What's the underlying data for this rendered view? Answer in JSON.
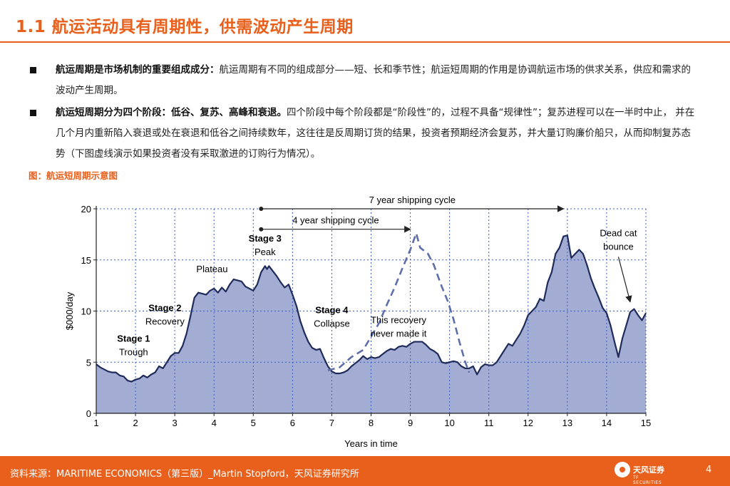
{
  "header": {
    "title": "1.1 航运活动具有周期性，供需波动产生周期"
  },
  "bullets": [
    {
      "bold": "航运周期是市场机制的重要组成成分：",
      "text": "航运周期有不同的组成部分——短、长和季节性；航运短周期的作用是协调航运市场的供求关系，供应和需求的波动产生周期。"
    },
    {
      "bold": "航运短周期分为四个阶段：低谷、复苏、高峰和衰退。",
      "text": "四个阶段中每个阶段都是“阶段性”的，过程不具备“规律性”；复苏进程可以在一半时中止， 并在几个月内重新陷入衰退或处在衰退和低谷之间持续数年，这往往是反周期订货的结果，投资者预期经济会复苏，并大量订购廉价船只，从而抑制复苏态势（下图虚线演示如果投资者没有采取激进的订购行为情况）。"
    }
  ],
  "figure": {
    "caption": "图：航运短周期示意图"
  },
  "chart_data": {
    "type": "area",
    "xlabel": "Years in time",
    "ylabel": "$000/day",
    "xlim": [
      1,
      15
    ],
    "ylim": [
      0,
      20
    ],
    "xticks": [
      1,
      2,
      3,
      4,
      5,
      6,
      7,
      8,
      9,
      10,
      11,
      12,
      13,
      14,
      15
    ],
    "yticks": [
      0,
      5,
      10,
      15,
      20
    ],
    "grid": true,
    "fill_color": "#a3add3",
    "line_color": "#1f2b5a",
    "series": [
      {
        "values": [
          [
            1.0,
            4.8
          ],
          [
            1.1,
            4.5
          ],
          [
            1.2,
            4.3
          ],
          [
            1.3,
            4.1
          ],
          [
            1.4,
            4.0
          ],
          [
            1.5,
            4.0
          ],
          [
            1.6,
            3.7
          ],
          [
            1.7,
            3.6
          ],
          [
            1.8,
            3.2
          ],
          [
            1.9,
            3.1
          ],
          [
            2.0,
            3.3
          ],
          [
            2.1,
            3.4
          ],
          [
            2.2,
            3.7
          ],
          [
            2.3,
            3.5
          ],
          [
            2.4,
            3.8
          ],
          [
            2.5,
            4.0
          ],
          [
            2.6,
            4.6
          ],
          [
            2.7,
            4.4
          ],
          [
            2.8,
            5.0
          ],
          [
            2.9,
            5.6
          ],
          [
            3.0,
            5.9
          ],
          [
            3.1,
            5.9
          ],
          [
            3.2,
            6.6
          ],
          [
            3.3,
            7.8
          ],
          [
            3.4,
            9.5
          ],
          [
            3.5,
            11.3
          ],
          [
            3.6,
            11.8
          ],
          [
            3.7,
            11.7
          ],
          [
            3.8,
            11.6
          ],
          [
            3.9,
            12.0
          ],
          [
            4.0,
            12.2
          ],
          [
            4.1,
            11.8
          ],
          [
            4.2,
            12.3
          ],
          [
            4.3,
            11.9
          ],
          [
            4.4,
            12.6
          ],
          [
            4.5,
            13.1
          ],
          [
            4.6,
            13.0
          ],
          [
            4.7,
            12.9
          ],
          [
            4.8,
            12.4
          ],
          [
            4.9,
            12.2
          ],
          [
            5.0,
            12.0
          ],
          [
            5.1,
            12.6
          ],
          [
            5.2,
            13.8
          ],
          [
            5.3,
            14.4
          ],
          [
            5.35,
            14.1
          ],
          [
            5.4,
            14.4
          ],
          [
            5.5,
            13.9
          ],
          [
            5.6,
            13.4
          ],
          [
            5.7,
            12.8
          ],
          [
            5.8,
            12.3
          ],
          [
            5.9,
            12.6
          ],
          [
            6.0,
            11.6
          ],
          [
            6.1,
            10.5
          ],
          [
            6.2,
            9.0
          ],
          [
            6.3,
            7.9
          ],
          [
            6.4,
            7.0
          ],
          [
            6.5,
            6.4
          ],
          [
            6.6,
            6.2
          ],
          [
            6.7,
            6.3
          ],
          [
            6.8,
            5.4
          ],
          [
            6.9,
            4.6
          ],
          [
            7.0,
            4.1
          ],
          [
            7.1,
            3.9
          ],
          [
            7.2,
            3.9
          ],
          [
            7.3,
            4.0
          ],
          [
            7.4,
            4.2
          ],
          [
            7.5,
            4.6
          ],
          [
            7.6,
            4.9
          ],
          [
            7.7,
            5.2
          ],
          [
            7.8,
            5.6
          ],
          [
            7.9,
            5.3
          ],
          [
            8.0,
            5.5
          ],
          [
            8.1,
            5.4
          ],
          [
            8.2,
            5.5
          ],
          [
            8.3,
            5.8
          ],
          [
            8.4,
            6.1
          ],
          [
            8.5,
            6.3
          ],
          [
            8.6,
            6.2
          ],
          [
            8.7,
            6.5
          ],
          [
            8.8,
            6.6
          ],
          [
            8.9,
            6.5
          ],
          [
            9.0,
            6.8
          ],
          [
            9.1,
            7.0
          ],
          [
            9.2,
            7.0
          ],
          [
            9.3,
            7.0
          ],
          [
            9.4,
            6.7
          ],
          [
            9.5,
            6.3
          ],
          [
            9.6,
            6.1
          ],
          [
            9.7,
            5.8
          ],
          [
            9.8,
            5.0
          ],
          [
            9.9,
            4.9
          ],
          [
            10.0,
            5.0
          ],
          [
            10.1,
            5.1
          ],
          [
            10.2,
            5.0
          ],
          [
            10.3,
            4.6
          ],
          [
            10.4,
            4.4
          ],
          [
            10.5,
            4.4
          ],
          [
            10.6,
            4.6
          ],
          [
            10.7,
            3.8
          ],
          [
            10.8,
            4.5
          ],
          [
            10.9,
            4.8
          ],
          [
            11.0,
            4.7
          ],
          [
            11.1,
            4.7
          ],
          [
            11.2,
            5.0
          ],
          [
            11.3,
            5.6
          ],
          [
            11.4,
            6.2
          ],
          [
            11.5,
            6.8
          ],
          [
            11.6,
            6.6
          ],
          [
            11.7,
            7.2
          ],
          [
            11.8,
            7.8
          ],
          [
            11.9,
            8.6
          ],
          [
            12.0,
            9.6
          ],
          [
            12.1,
            10.0
          ],
          [
            12.2,
            10.4
          ],
          [
            12.3,
            11.2
          ],
          [
            12.4,
            11.0
          ],
          [
            12.5,
            12.8
          ],
          [
            12.6,
            13.8
          ],
          [
            12.7,
            15.6
          ],
          [
            12.8,
            16.2
          ],
          [
            12.9,
            17.3
          ],
          [
            13.0,
            17.4
          ],
          [
            13.1,
            15.2
          ],
          [
            13.2,
            15.6
          ],
          [
            13.3,
            16.0
          ],
          [
            13.4,
            15.6
          ],
          [
            13.5,
            14.5
          ],
          [
            13.6,
            13.2
          ],
          [
            13.7,
            12.2
          ],
          [
            13.8,
            11.3
          ],
          [
            13.9,
            10.3
          ],
          [
            14.0,
            9.8
          ],
          [
            14.1,
            8.6
          ],
          [
            14.2,
            7.0
          ],
          [
            14.3,
            5.5
          ],
          [
            14.4,
            7.3
          ],
          [
            14.5,
            8.6
          ],
          [
            14.6,
            9.9
          ],
          [
            14.7,
            10.2
          ],
          [
            14.8,
            9.6
          ],
          [
            14.9,
            9.1
          ],
          [
            15.0,
            9.8
          ]
        ]
      },
      {
        "style": "dashed",
        "values": [
          [
            6.9,
            4.2
          ],
          [
            7.2,
            4.5
          ],
          [
            7.5,
            5.5
          ],
          [
            7.8,
            6.2
          ],
          [
            8.0,
            7.5
          ],
          [
            8.2,
            8.8
          ],
          [
            8.4,
            10.6
          ],
          [
            8.6,
            12.3
          ],
          [
            8.8,
            14.2
          ],
          [
            9.0,
            16.0
          ],
          [
            9.15,
            17.6
          ],
          [
            9.25,
            16.2
          ],
          [
            9.45,
            15.6
          ],
          [
            9.6,
            14.5
          ],
          [
            9.8,
            12.4
          ],
          [
            9.95,
            11.0
          ],
          [
            10.1,
            9.2
          ],
          [
            10.25,
            7.0
          ],
          [
            10.4,
            5.0
          ],
          [
            10.5,
            4.0
          ]
        ]
      }
    ],
    "annotations": [
      {
        "text": "7 year shipping cycle",
        "from": 5.2,
        "to": 12.9,
        "y": 20
      },
      {
        "text": "4 year shipping cycle",
        "from": 5.2,
        "to": 9.0,
        "y": 18
      },
      {
        "text": "Stage 1",
        "sub": "Trough",
        "x": 1.95,
        "y": 7.0
      },
      {
        "text": "Stage 2",
        "sub": "Recovery",
        "x": 2.75,
        "y": 10.0
      },
      {
        "text": "Plateau",
        "x": 3.95,
        "y": 13.8
      },
      {
        "text": "Stage 3",
        "sub": "Peak",
        "x": 5.3,
        "y": 16.8
      },
      {
        "text": "Stage 4",
        "sub": "Collapse",
        "x": 7.0,
        "y": 9.8
      },
      {
        "text": "This recovery",
        "sub": "never made it",
        "x": 8.7,
        "y": 8.8
      },
      {
        "text": "Dead cat",
        "sub": "bounce",
        "x": 14.3,
        "y": 17.3
      }
    ]
  },
  "footer": {
    "source": "资料来源：MARITIME ECONOMICS（第三版）_Martin Stopford，天风证券研究所",
    "logo_name": "天风证券",
    "logo_sub": "TF SECURITIES",
    "page_number": "4"
  }
}
